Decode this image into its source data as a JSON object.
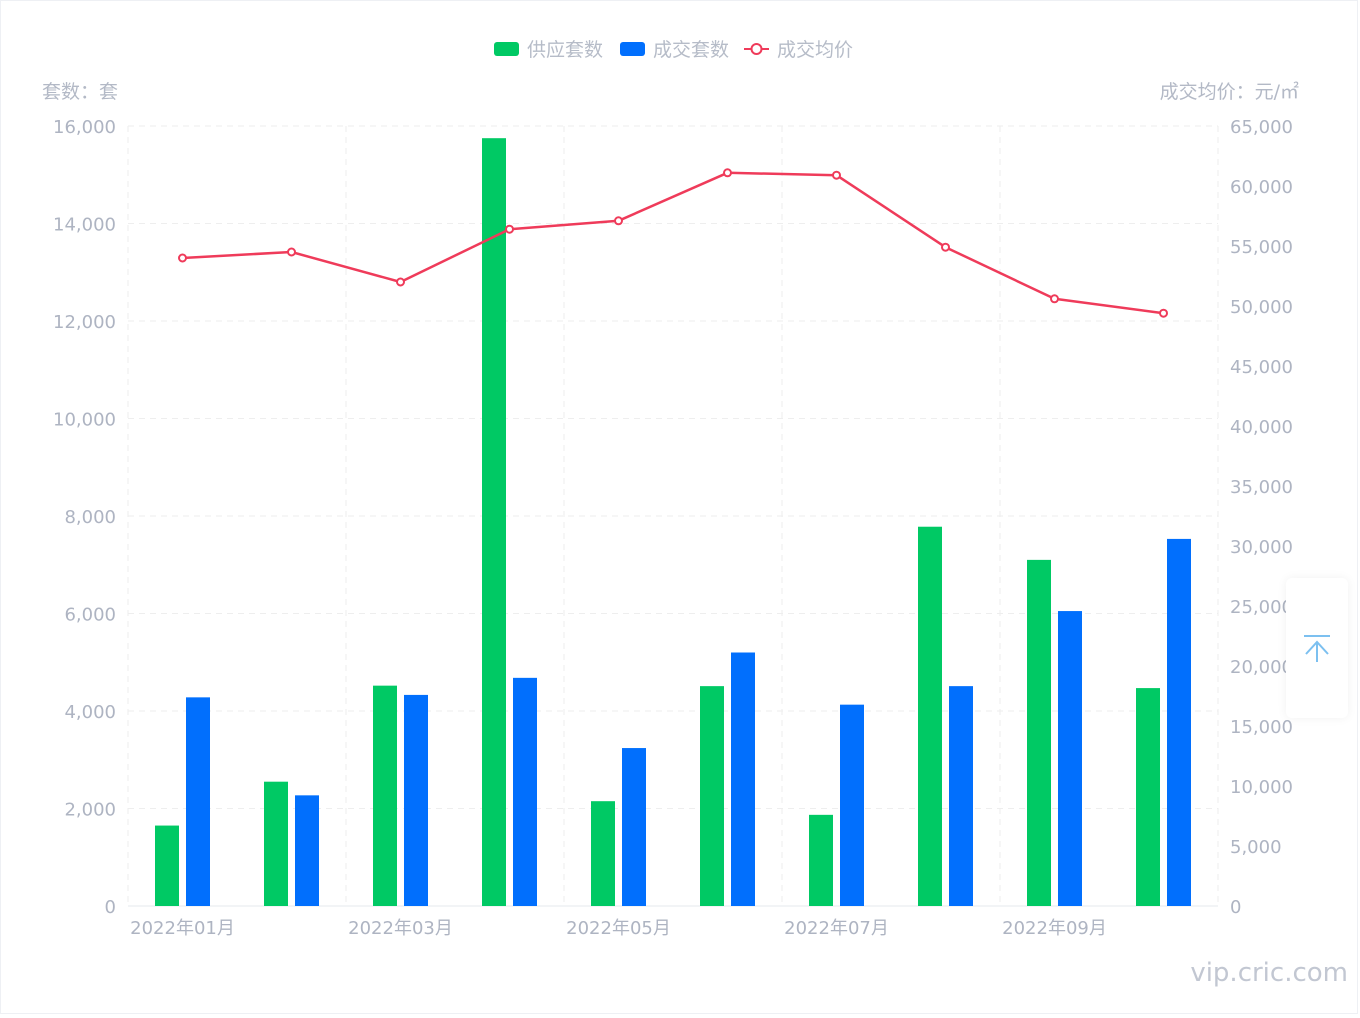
{
  "colors": {
    "supply": "#00c964",
    "deal": "#016ffd",
    "price": "#ef3b5a",
    "grid": "#eeeeee",
    "axis_text": "#aeb4c2"
  },
  "units": {
    "left": "套数：套",
    "right": "成交均价：元/㎡"
  },
  "legend": [
    {
      "label": "供应套数",
      "type": "bar",
      "color": "#00c964"
    },
    {
      "label": "成交套数",
      "type": "bar",
      "color": "#016ffd"
    },
    {
      "label": "成交均价",
      "type": "line",
      "color": "#ef3b5a"
    }
  ],
  "chart_data": {
    "type": "bar",
    "categories": [
      "2022年01月",
      "2022年02月",
      "2022年03月",
      "2022年04月",
      "2022年05月",
      "2022年06月",
      "2022年07月",
      "2022年08月",
      "2022年09月",
      "2022年10月"
    ],
    "x_tick_labels_shown": [
      "2022年01月",
      "",
      "2022年03月",
      "",
      "2022年05月",
      "",
      "2022年07月",
      "",
      "2022年09月",
      ""
    ],
    "series": [
      {
        "name": "供应套数",
        "type": "bar",
        "axis": "left",
        "values": [
          1650,
          2550,
          4520,
          15750,
          2150,
          4510,
          1870,
          7780,
          7100,
          4470
        ]
      },
      {
        "name": "成交套数",
        "type": "bar",
        "axis": "left",
        "values": [
          4280,
          2270,
          4330,
          4680,
          3240,
          5200,
          4130,
          4510,
          6050,
          7530
        ]
      },
      {
        "name": "成交均价",
        "type": "line",
        "axis": "right",
        "values": [
          54000,
          54500,
          52000,
          56400,
          57100,
          61100,
          60900,
          54900,
          50600,
          49400
        ]
      }
    ],
    "ylim_left": [
      0,
      16000
    ],
    "yticks_left": [
      "0",
      "2,000",
      "4,000",
      "6,000",
      "8,000",
      "10,000",
      "12,000",
      "14,000",
      "16,000"
    ],
    "ylim_right": [
      0,
      65000
    ],
    "yticks_right": [
      "0",
      "5,000",
      "10,000",
      "15,000",
      "20,000",
      "25,000",
      "30,000",
      "35,000",
      "40,000",
      "45,000",
      "50,000",
      "55,000",
      "60,000",
      "65,000"
    ],
    "grid": true,
    "legend_position": "top-center"
  },
  "watermark": "vip.cric.com",
  "back_to_top": {
    "icon": "arrow-up-to-top-icon"
  }
}
